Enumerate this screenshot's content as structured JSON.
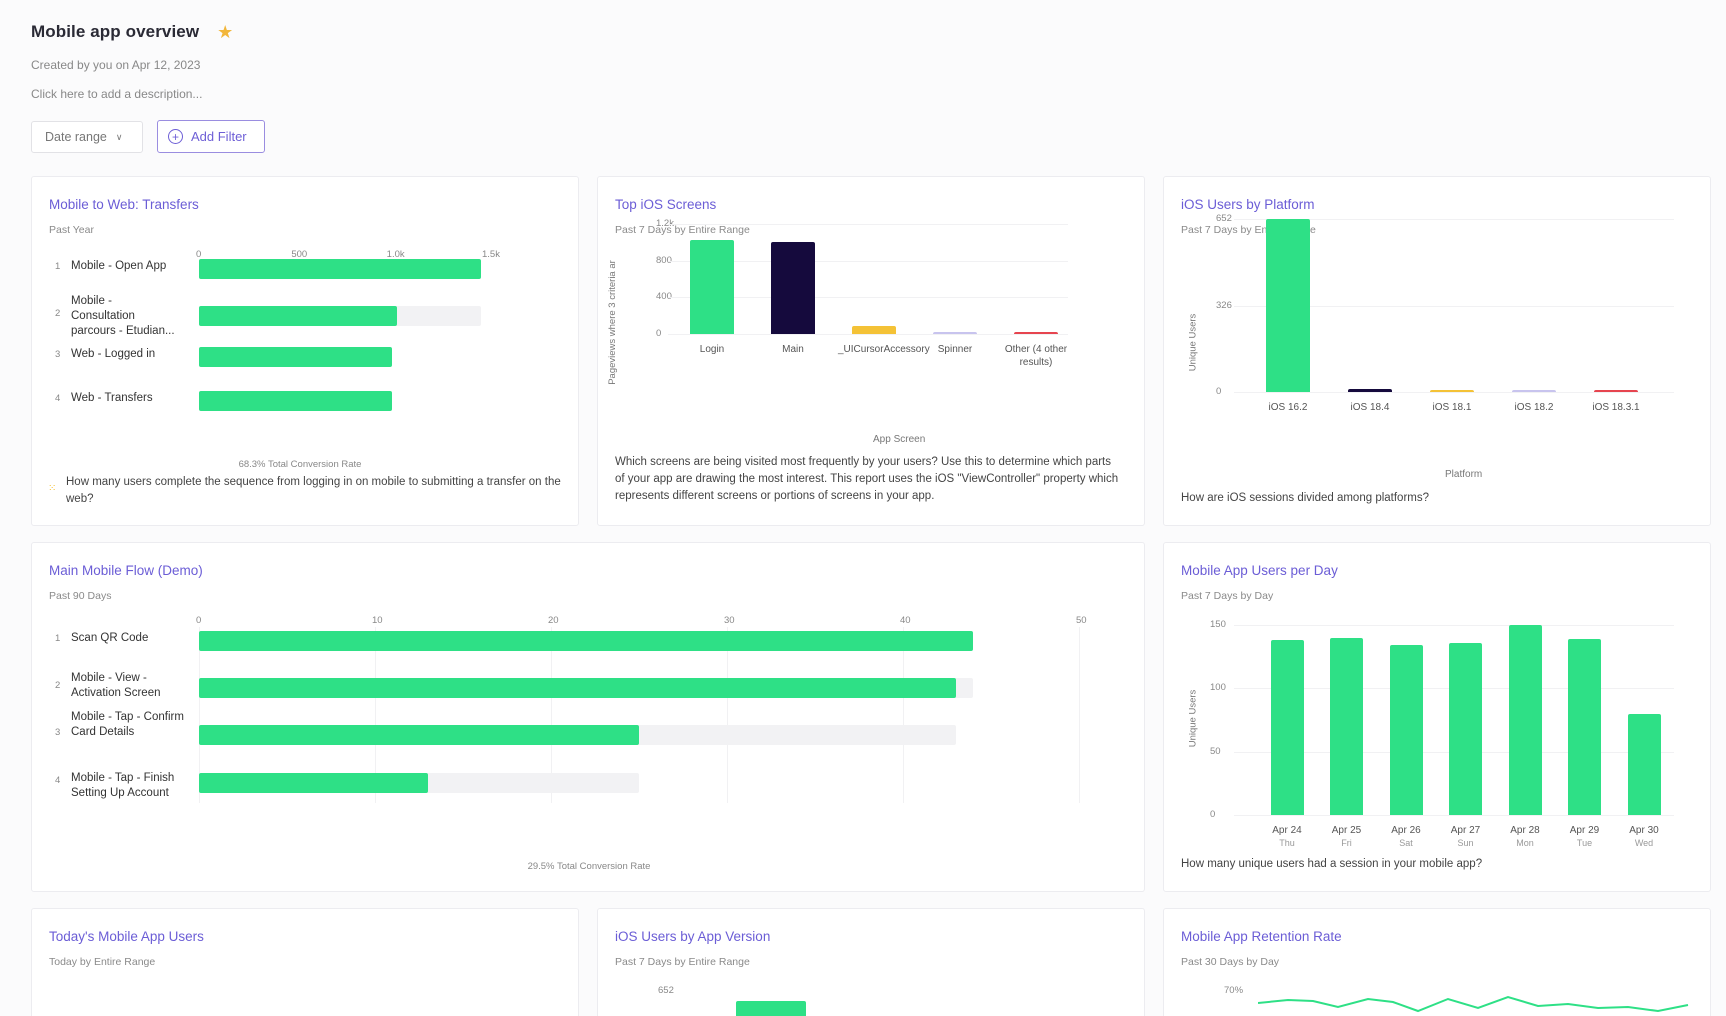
{
  "header": {
    "title": "Mobile app overview",
    "created": "Created by you on Apr 12, 2023",
    "description_placeholder": "Click here to add a description...",
    "date_range_label": "Date range",
    "add_filter_label": "Add Filter"
  },
  "colors": {
    "accent": "#6b5dd6",
    "green": "#2ee086",
    "navy": "#150a3d",
    "yellow": "#f4c236",
    "red": "#e6454f",
    "star": "#f2b63b"
  },
  "cards": {
    "transfers": {
      "title": "Mobile to Web: Transfers",
      "subtitle": "Past Year",
      "x_ticks": [
        "0",
        "500",
        "1.0k",
        "1.5k"
      ],
      "steps": [
        {
          "num": "1",
          "label": "Mobile - Open App",
          "value": 1480,
          "track": 1480
        },
        {
          "num": "2",
          "label": "Mobile - Consultation parcours - Etudian...",
          "value": 1040,
          "track": 1480
        },
        {
          "num": "3",
          "label": "Web - Logged in",
          "value": 1010,
          "track": 1010
        },
        {
          "num": "4",
          "label": "Web - Transfers",
          "value": 1010,
          "track": 1010
        }
      ],
      "conversion": "68.3% Total Conversion Rate",
      "description": "How many users complete the sequence from logging in on mobile to submitting a transfer on the web?"
    },
    "ios_screens": {
      "title": "Top iOS Screens",
      "subtitle": "Past 7 Days by Entire Range",
      "y_title": "Pageviews where 3 criteria ar",
      "x_title": "App Screen",
      "y_ticks": [
        "1.2k",
        "800",
        "400",
        "0"
      ],
      "description": "Which screens are being visited most frequently by your users? Use this to determine which parts of your app are drawing the most interest. This report uses the iOS \"ViewController\" property which represents different screens or portions of screens in your app."
    },
    "ios_platform": {
      "title": "iOS Users by Platform",
      "subtitle": "Past 7 Days by Entire Range",
      "y_title": "Unique Users",
      "x_title": "Platform",
      "y_ticks": [
        "652",
        "326",
        "0"
      ],
      "description": "How are iOS sessions divided among platforms?"
    },
    "main_flow": {
      "title": "Main Mobile Flow (Demo)",
      "subtitle": "Past 90 Days",
      "x_ticks": [
        "0",
        "10",
        "20",
        "30",
        "40",
        "50"
      ],
      "steps": [
        {
          "num": "1",
          "label": "Scan QR Code",
          "value": 44,
          "track": 44
        },
        {
          "num": "2",
          "label": "Mobile - View - Activation Screen",
          "value": 43,
          "track": 44
        },
        {
          "num": "3",
          "label": "Mobile - Tap - Confirm Card Details",
          "value": 25,
          "track": 43
        },
        {
          "num": "4",
          "label": "Mobile - Tap - Finish Setting Up Account",
          "value": 13,
          "track": 25
        }
      ],
      "conversion": "29.5% Total Conversion Rate"
    },
    "users_per_day": {
      "title": "Mobile App Users per Day",
      "subtitle": "Past 7 Days by Day",
      "y_title": "Unique Users",
      "y_ticks": [
        "150",
        "100",
        "50",
        "0"
      ],
      "description": "How many unique users had a session in your mobile app?"
    },
    "today_users": {
      "title": "Today's Mobile App Users",
      "subtitle": "Today by Entire Range"
    },
    "app_version": {
      "title": "iOS Users by App Version",
      "subtitle": "Past 7 Days by Entire Range",
      "y_tick_top": "652"
    },
    "retention": {
      "title": "Mobile App Retention Rate",
      "subtitle": "Past 30 Days by Day",
      "y_tick_top": "70%"
    }
  },
  "chart_data": [
    {
      "type": "bar",
      "title": "Top iOS Screens",
      "xlabel": "App Screen",
      "ylabel": "Pageviews where 3 criteria ar",
      "ylim": [
        0,
        1200
      ],
      "categories": [
        "Login",
        "Main",
        "_UICursorAccessory",
        "Spinner",
        "Other (4 other results)"
      ],
      "values": [
        1030,
        1000,
        90,
        20,
        25
      ],
      "colors": [
        "#2ee086",
        "#150a3d",
        "#f4c236",
        "#c8c4ee",
        "#e6454f"
      ]
    },
    {
      "type": "bar",
      "title": "iOS Users by Platform",
      "xlabel": "Platform",
      "ylabel": "Unique Users",
      "ylim": [
        0,
        652
      ],
      "categories": [
        "iOS 16.2",
        "iOS 18.4",
        "iOS 18.1",
        "iOS 18.2",
        "iOS 18.3.1"
      ],
      "values": [
        652,
        10,
        3,
        2,
        2
      ],
      "colors": [
        "#2ee086",
        "#150a3d",
        "#f4c236",
        "#c8c4ee",
        "#e6454f"
      ]
    },
    {
      "type": "bar",
      "title": "Mobile App Users per Day",
      "ylabel": "Unique Users",
      "ylim": [
        0,
        150
      ],
      "categories": [
        "Apr 24",
        "Apr 25",
        "Apr 26",
        "Apr 27",
        "Apr 28",
        "Apr 29",
        "Apr 30"
      ],
      "day_labels": [
        "Thu",
        "Fri",
        "Sat",
        "Sun",
        "Mon",
        "Tue",
        "Wed"
      ],
      "values": [
        138,
        140,
        134,
        136,
        150,
        139,
        80
      ]
    }
  ]
}
